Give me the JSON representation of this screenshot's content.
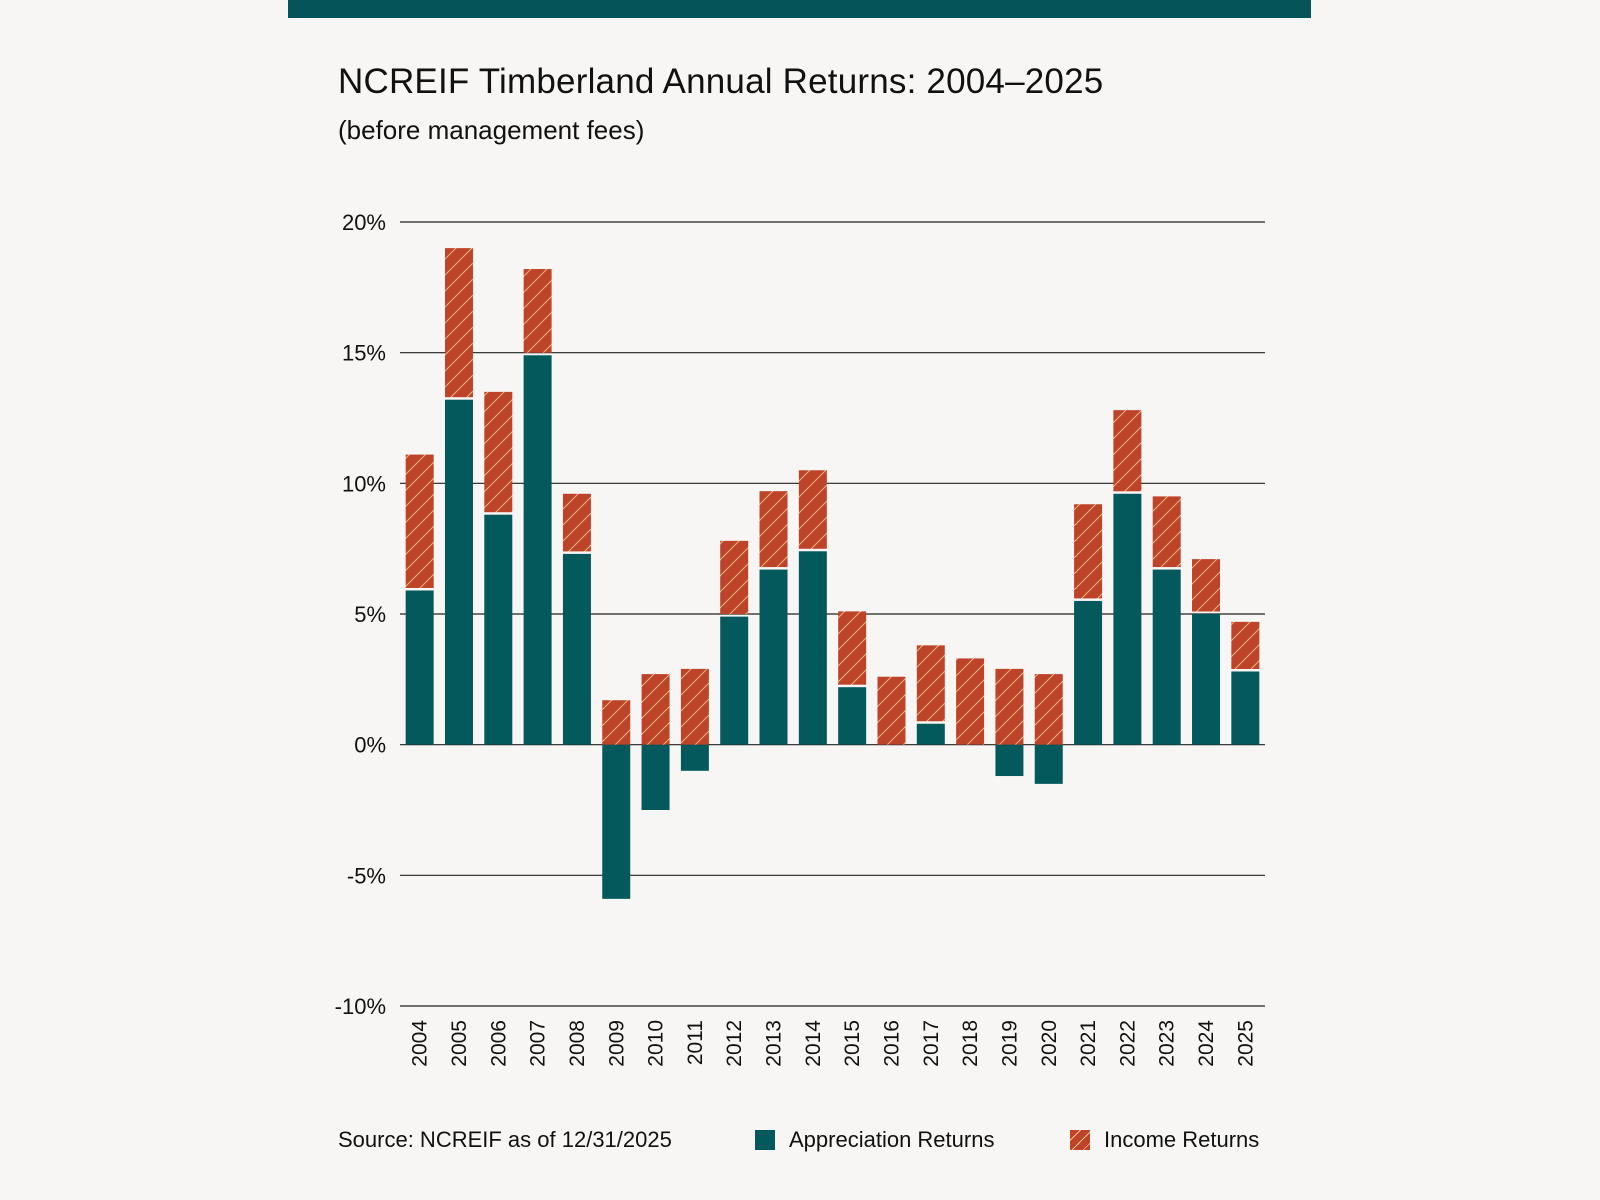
{
  "header": {
    "title": "NCREIF Timberland Annual Returns: 2004–2025",
    "subtitle": "(before management fees)"
  },
  "footer": {
    "source": "Source: NCREIF as of 12/31/2025"
  },
  "legend": {
    "appreciation_label": "Appreciation Returns",
    "income_label": "Income Returns"
  },
  "colors": {
    "appreciation": "#04595d",
    "income": "#bd4428",
    "hatch": "#f3c58f",
    "accent_bar": "#04545a"
  },
  "chart_data": {
    "type": "bar",
    "stacked": true,
    "categories": [
      "2004",
      "2005",
      "2006",
      "2007",
      "2008",
      "2009",
      "2010",
      "2011",
      "2012",
      "2013",
      "2014",
      "2015",
      "2016",
      "2017",
      "2018",
      "2019",
      "2020",
      "2021",
      "2022",
      "2023",
      "2024",
      "2025"
    ],
    "series": [
      {
        "name": "Appreciation Returns",
        "values": [
          5.9,
          13.2,
          8.8,
          14.9,
          7.3,
          -5.9,
          -2.5,
          -1.0,
          4.9,
          6.7,
          7.4,
          2.2,
          0.0,
          0.8,
          0.0,
          -1.2,
          -1.5,
          5.5,
          9.6,
          6.7,
          5.0,
          2.8
        ]
      },
      {
        "name": "Income Returns",
        "values": [
          5.2,
          5.8,
          4.7,
          3.3,
          2.3,
          1.7,
          2.7,
          2.9,
          2.9,
          3.0,
          3.1,
          2.9,
          2.6,
          3.0,
          3.3,
          2.9,
          2.7,
          3.7,
          3.2,
          2.8,
          2.1,
          1.9
        ]
      }
    ],
    "yticks": [
      20,
      15,
      10,
      5,
      0,
      -5,
      -10
    ],
    "ytick_labels": [
      "20%",
      "15%",
      "10%",
      "5%",
      "0%",
      "-5%",
      "-10%"
    ],
    "ylim": [
      -10,
      20
    ],
    "grid": true,
    "xlabel": "",
    "ylabel": "",
    "legend_position": "bottom-right"
  }
}
